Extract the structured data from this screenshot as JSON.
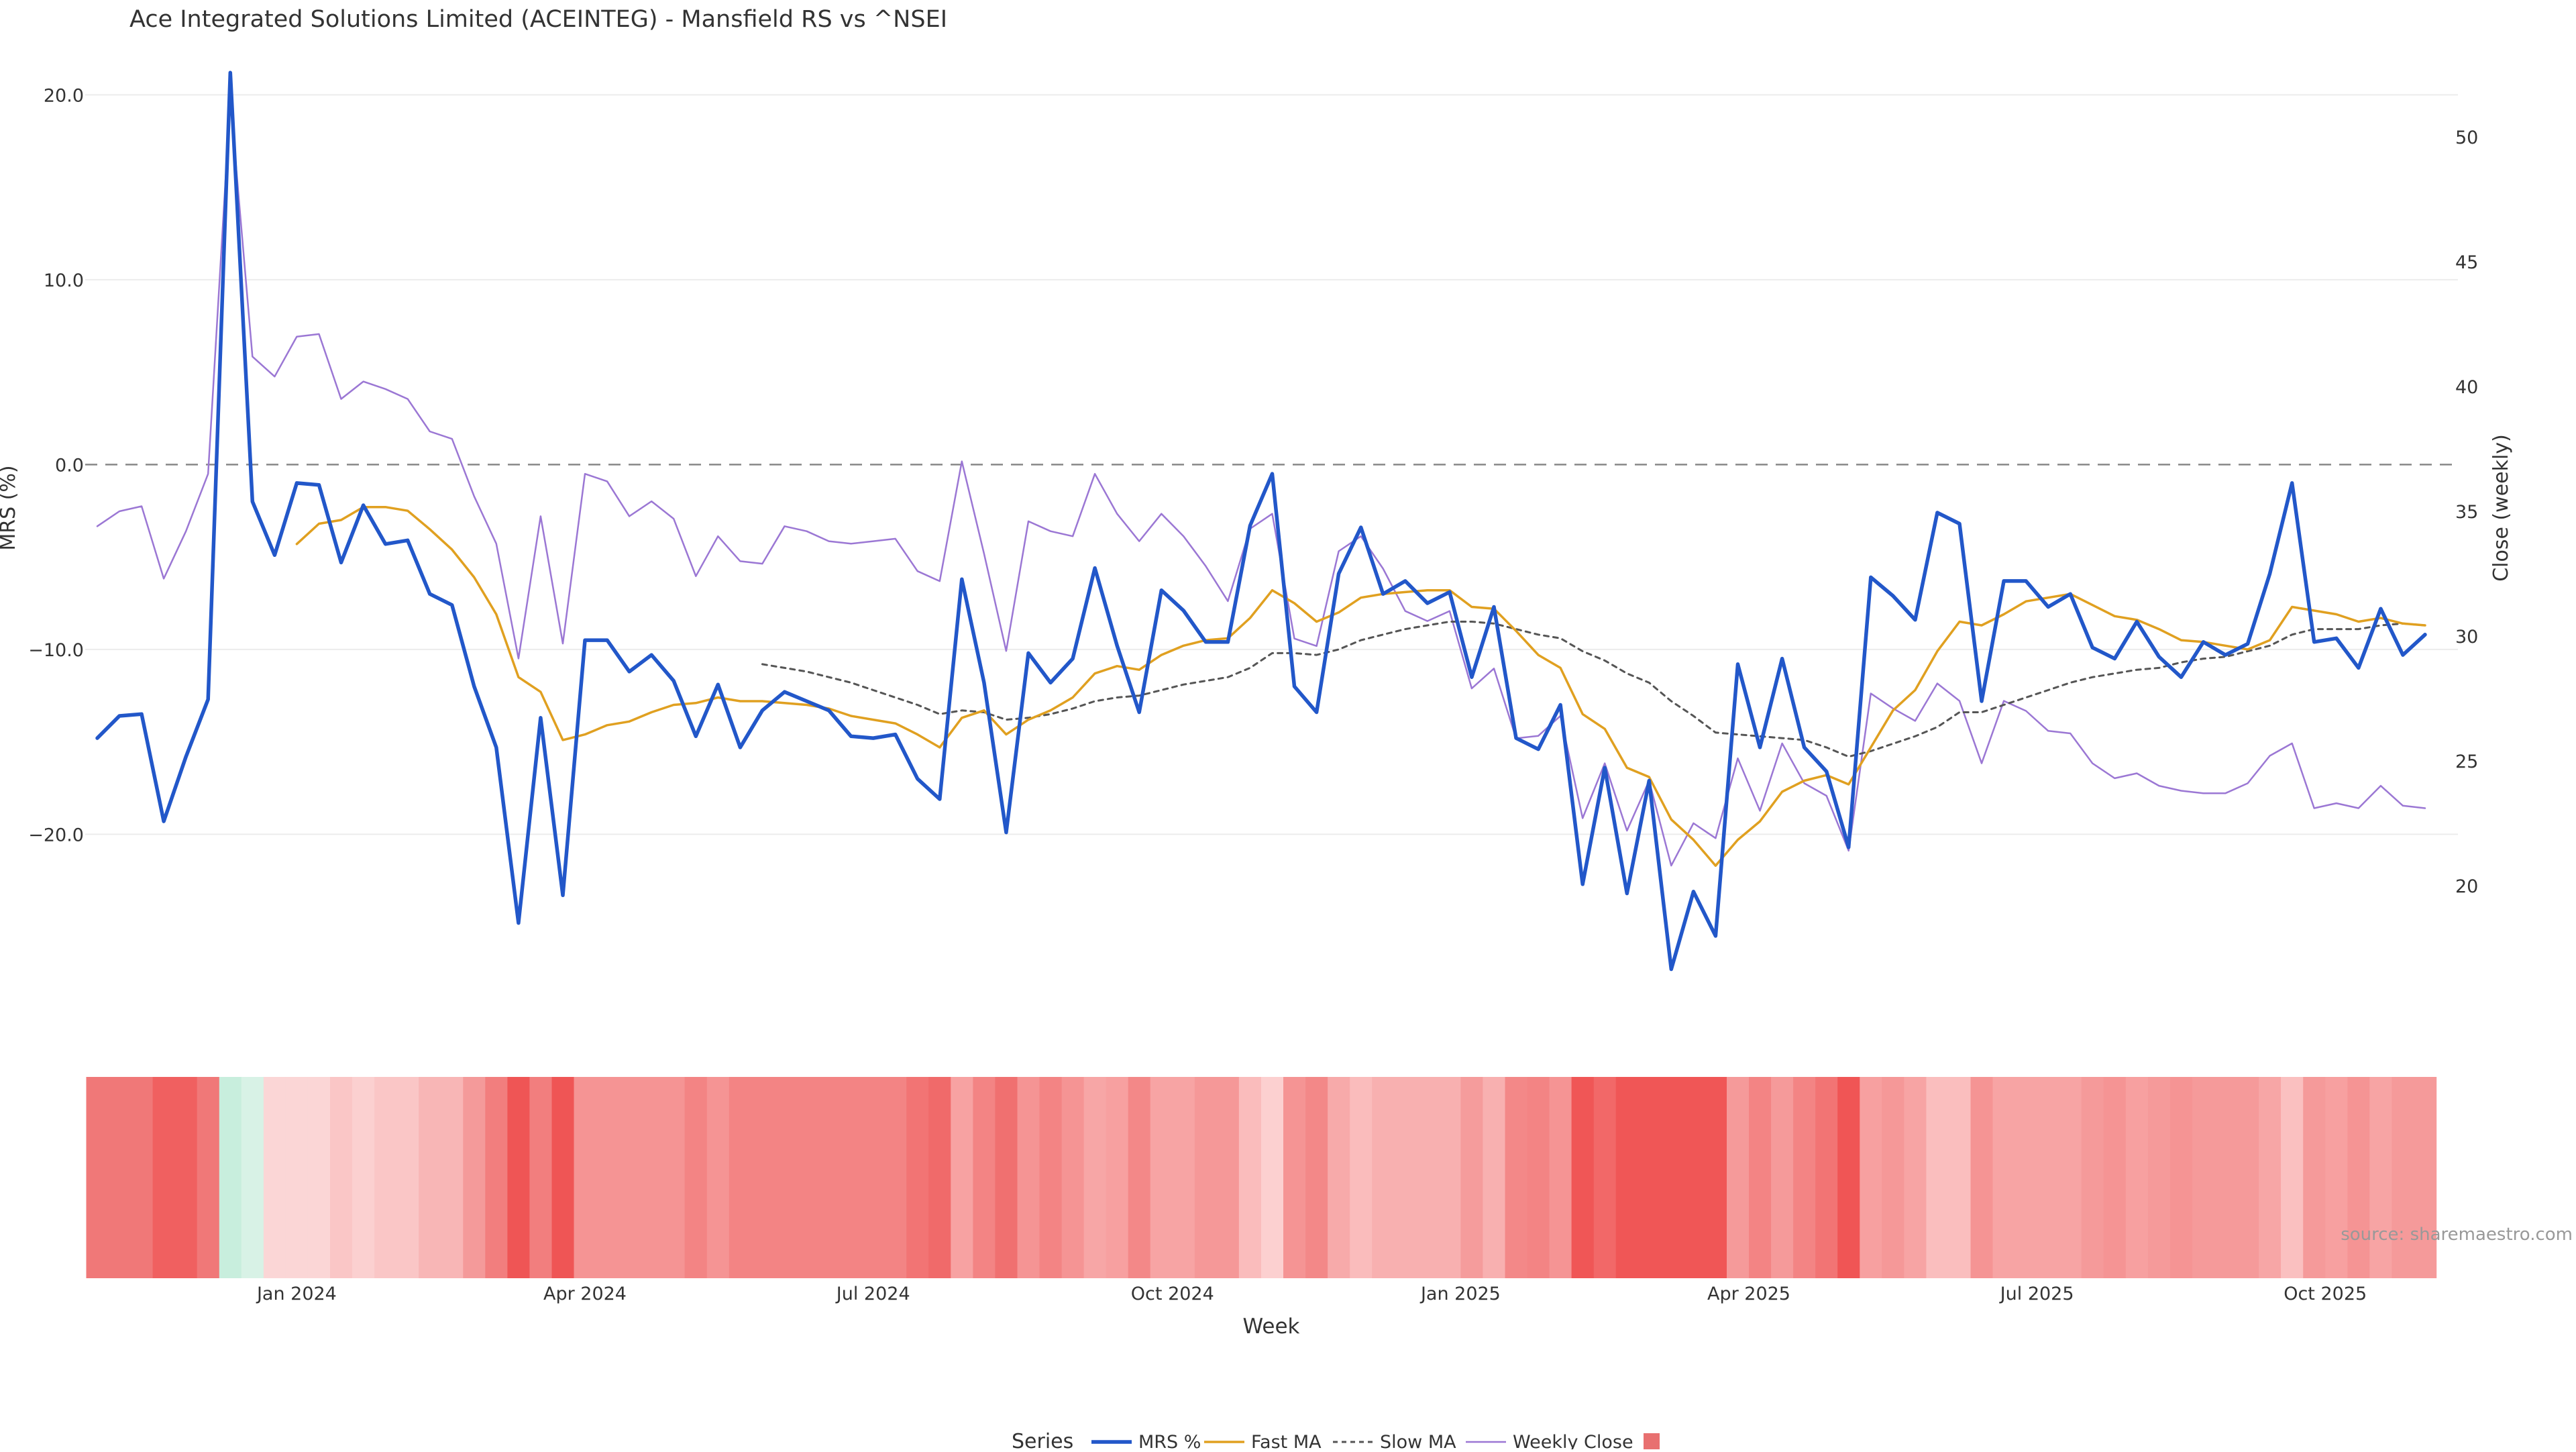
{
  "chart_data": {
    "type": "line",
    "title": "Ace Integrated Solutions Limited (ACEINTEG) - Mansfield RS vs ^NSEI",
    "xlabel": "Week",
    "ylabel": "MRS (%)",
    "y2label": "Close (weekly)",
    "source": "source: sharemaestro.com",
    "legend_title": "Series",
    "legend_position": "bottom-center",
    "grid": true,
    "ylim": [
      -27.5,
      21.5
    ],
    "y2lim": [
      16.5,
      52.8
    ],
    "yticks": [
      20,
      10,
      0,
      -10,
      -20
    ],
    "ytick_labels": [
      "20.0",
      "10.0",
      "0.0",
      "−10.0",
      "−20.0"
    ],
    "y2ticks": [
      50,
      45,
      40,
      35,
      30,
      25,
      20
    ],
    "y2tick_labels": [
      "50",
      "45",
      "40",
      "35",
      "30",
      "25",
      "20"
    ],
    "x_ticks": [
      {
        "label": "Jan 2024",
        "week": 9
      },
      {
        "label": "Apr 2024",
        "week": 22
      },
      {
        "label": "Jul 2024",
        "week": 35
      },
      {
        "label": "Oct 2024",
        "week": 48.5
      },
      {
        "label": "Jan 2025",
        "week": 61.5
      },
      {
        "label": "Apr 2025",
        "week": 74.5
      },
      {
        "label": "Jul 2025",
        "week": 87.5
      },
      {
        "label": "Oct 2025",
        "week": 100.5
      }
    ],
    "n_weeks": 107,
    "series": [
      {
        "name": "MRS %",
        "axis": "left",
        "color": "#2257c9",
        "style": "solid",
        "values": [
          -14.8,
          -13.6,
          -13.5,
          -19.3,
          -15.8,
          -12.7,
          21.2,
          -2.0,
          -4.9,
          -1.0,
          -1.1,
          -5.3,
          -2.2,
          -4.3,
          -4.1,
          -7.0,
          -7.6,
          -12.0,
          -15.3,
          -24.8,
          -13.7,
          -23.3,
          -9.5,
          -9.5,
          -11.2,
          -10.3,
          -11.7,
          -14.7,
          -11.9,
          -15.3,
          -13.3,
          -12.3,
          -12.8,
          -13.3,
          -14.7,
          -14.8,
          -14.6,
          -17.0,
          -18.1,
          -6.2,
          -11.8,
          -19.9,
          -10.2,
          -11.8,
          -10.5,
          -5.6,
          -9.8,
          -13.4,
          -6.8,
          -7.9,
          -9.6,
          -9.6,
          -3.3,
          -0.5,
          -12.0,
          -13.4,
          -5.9,
          -3.4,
          -7.0,
          -6.3,
          -7.5,
          -6.9,
          -11.5,
          -7.7,
          -14.8,
          -15.4,
          -13.0,
          -22.7,
          -16.4,
          -23.2,
          -17.1,
          -27.3,
          -23.1,
          -25.5,
          -10.8,
          -15.3,
          -10.5,
          -15.3,
          -16.6,
          -20.7,
          -6.1,
          -7.1,
          -8.4,
          -2.6,
          -3.2,
          -12.8,
          -6.3,
          -6.3,
          -7.7,
          -7.0,
          -9.9,
          -10.5,
          -8.5,
          -10.4,
          -11.5,
          -9.6,
          -10.3,
          -9.7,
          -5.9,
          -1.0,
          -9.6,
          -9.4,
          -11.0,
          -7.8,
          -10.3,
          -9.2
        ]
      },
      {
        "name": "Fast MA",
        "axis": "left",
        "color": "#e0a020",
        "style": "solid",
        "values": [
          null,
          null,
          null,
          null,
          null,
          null,
          null,
          null,
          null,
          -4.3,
          -3.2,
          -3.0,
          -2.3,
          -2.3,
          -2.5,
          -3.5,
          -4.6,
          -6.1,
          -8.1,
          -11.5,
          -12.3,
          -14.9,
          -14.6,
          -14.1,
          -13.9,
          -13.4,
          -13.0,
          -12.9,
          -12.6,
          -12.8,
          -12.8,
          -12.9,
          -13.0,
          -13.2,
          -13.6,
          -13.8,
          -14.0,
          -14.6,
          -15.3,
          -13.7,
          -13.3,
          -14.6,
          -13.8,
          -13.3,
          -12.6,
          -11.3,
          -10.9,
          -11.1,
          -10.3,
          -9.8,
          -9.5,
          -9.4,
          -8.3,
          -6.8,
          -7.5,
          -8.5,
          -8.0,
          -7.2,
          -7.0,
          -6.9,
          -6.8,
          -6.8,
          -7.7,
          -7.8,
          -9.0,
          -10.3,
          -11.0,
          -13.5,
          -14.3,
          -16.4,
          -16.9,
          -19.2,
          -20.3,
          -21.7,
          -20.3,
          -19.3,
          -17.7,
          -17.1,
          -16.8,
          -17.3,
          -15.3,
          -13.3,
          -12.2,
          -10.1,
          -8.5,
          -8.7,
          -8.1,
          -7.4,
          -7.2,
          -7.0,
          -7.6,
          -8.2,
          -8.4,
          -8.9,
          -9.5,
          -9.6,
          -9.8,
          -10.0,
          -9.5,
          -7.7,
          -7.9,
          -8.1,
          -8.5,
          -8.3,
          -8.6,
          -8.7
        ]
      },
      {
        "name": "Slow MA",
        "axis": "left",
        "color": "#555555",
        "style": "dotted",
        "values": [
          null,
          null,
          null,
          null,
          null,
          null,
          null,
          null,
          null,
          null,
          null,
          null,
          null,
          null,
          null,
          null,
          null,
          null,
          null,
          null,
          null,
          null,
          null,
          null,
          null,
          null,
          null,
          null,
          null,
          null,
          -10.8,
          -11.0,
          -11.2,
          -11.5,
          -11.8,
          -12.2,
          -12.6,
          -13.0,
          -13.5,
          -13.3,
          -13.4,
          -13.8,
          -13.7,
          -13.5,
          -13.2,
          -12.8,
          -12.6,
          -12.5,
          -12.2,
          -11.9,
          -11.7,
          -11.5,
          -11.0,
          -10.2,
          -10.2,
          -10.3,
          -10.0,
          -9.5,
          -9.2,
          -8.9,
          -8.7,
          -8.5,
          -8.5,
          -8.6,
          -8.9,
          -9.2,
          -9.4,
          -10.1,
          -10.6,
          -11.3,
          -11.8,
          -12.8,
          -13.6,
          -14.5,
          -14.6,
          -14.7,
          -14.8,
          -14.9,
          -15.3,
          -15.8,
          -15.5,
          -15.1,
          -14.7,
          -14.2,
          -13.4,
          -13.4,
          -13.0,
          -12.6,
          -12.2,
          -11.8,
          -11.5,
          -11.3,
          -11.1,
          -11.0,
          -10.7,
          -10.5,
          -10.4,
          -10.1,
          -9.8,
          -9.2,
          -8.9,
          -8.9,
          -8.9,
          -8.7,
          -8.6,
          -8.7
        ]
      },
      {
        "name": "Weekly Close",
        "axis": "right",
        "color": "#9b77d4",
        "style": "solid",
        "values": [
          34.4,
          35.0,
          35.2,
          32.3,
          34.2,
          36.5,
          51.5,
          41.2,
          40.4,
          42.0,
          42.1,
          39.5,
          40.2,
          39.9,
          39.5,
          38.2,
          37.9,
          35.6,
          33.7,
          29.1,
          34.8,
          29.7,
          36.5,
          36.2,
          34.8,
          35.4,
          34.7,
          32.4,
          34.0,
          33.0,
          32.9,
          34.4,
          34.2,
          33.8,
          33.7,
          33.8,
          33.9,
          32.6,
          32.2,
          37.0,
          33.3,
          29.4,
          34.6,
          34.2,
          34.0,
          36.5,
          34.9,
          33.8,
          34.9,
          34.0,
          32.8,
          31.4,
          34.3,
          34.9,
          29.9,
          29.6,
          33.4,
          34.0,
          32.7,
          31.0,
          30.6,
          31.0,
          27.9,
          28.7,
          25.9,
          26.0,
          26.8,
          22.7,
          24.9,
          22.2,
          24.2,
          20.8,
          22.5,
          21.9,
          25.1,
          23.0,
          25.7,
          24.1,
          23.6,
          21.4,
          27.7,
          27.1,
          26.6,
          28.1,
          27.4,
          24.9,
          27.4,
          27.0,
          26.2,
          26.1,
          24.9,
          24.3,
          24.5,
          24.0,
          23.8,
          23.7,
          23.7,
          24.1,
          25.2,
          25.7,
          23.1,
          23.3,
          23.1,
          24.0,
          23.2,
          23.1
        ]
      },
      {
        "name": "",
        "type": "heatmap",
        "color": "#e87070",
        "values": [
          -14.8,
          -13.6,
          -13.5,
          -19.3,
          -15.8,
          -12.7,
          21.2,
          -2.0,
          -4.9,
          -1.0,
          -1.1,
          -5.3,
          -2.2,
          -4.3,
          -4.1,
          -7.0,
          -7.6,
          -12.0,
          -15.3,
          -24.8,
          -13.7,
          -23.3,
          -9.5,
          -9.5,
          -11.2,
          -10.3,
          -11.7,
          -14.7,
          -11.9,
          -15.3,
          -13.3,
          -12.3,
          -12.8,
          -13.3,
          -14.7,
          -14.8,
          -14.6,
          -17.0,
          -18.1,
          -6.2,
          -11.8,
          -19.9,
          -10.2,
          -11.8,
          -10.5,
          -5.6,
          -9.8,
          -13.4,
          -6.8,
          -7.9,
          -9.6,
          -9.6,
          -3.3,
          -0.5,
          -12.0,
          -13.4,
          -5.9,
          -3.4,
          -7.0,
          -6.3,
          -7.5,
          -6.9,
          -11.5,
          -7.7,
          -14.8,
          -15.4,
          -13.0,
          -22.7,
          -16.4,
          -23.2,
          -17.1,
          -27.3,
          -23.1,
          -25.5,
          -10.8,
          -15.3,
          -10.5,
          -15.3,
          -16.6,
          -20.7,
          -6.1,
          -7.1,
          -8.4,
          -2.6,
          -3.2,
          -12.8,
          -6.3,
          -6.3,
          -7.7,
          -7.0,
          -9.9,
          -10.5,
          -8.5,
          -10.4,
          -11.5,
          -9.6,
          -10.3,
          -9.7,
          -5.9,
          -1.0,
          -9.6,
          -9.4,
          -11.0,
          -7.8,
          -10.3,
          -9.2
        ]
      }
    ],
    "heatmap_colors": [
      "#f07878",
      "#f07878",
      "#f07878",
      "#f06060",
      "#f06060",
      "#f07878",
      "#c8eedd",
      "#d8f2e6",
      "#fbd6d6",
      "#fbd6d6",
      "#fbd6d6",
      "#fac6c6",
      "#fbd0d0",
      "#fac6c6",
      "#fac6c6",
      "#f8b6b6",
      "#f8b6b6",
      "#f49a9a",
      "#f27e7e",
      "#ef5555",
      "#f27e7e",
      "#ef5555",
      "#f59494",
      "#f59494",
      "#f59494",
      "#f59494",
      "#f59494",
      "#f38484",
      "#f59494",
      "#f38484",
      "#f38484",
      "#f38484",
      "#f38484",
      "#f38484",
      "#f38484",
      "#f38484",
      "#f38484",
      "#f27474",
      "#f06a6a",
      "#f7a2a2",
      "#f38484",
      "#f07070",
      "#f59494",
      "#f38484",
      "#f59494",
      "#f7a6a6",
      "#f7a0a0",
      "#f38888",
      "#f7a4a4",
      "#f7a4a4",
      "#f59898",
      "#f59898",
      "#fabcbc",
      "#fcd0d0",
      "#f59494",
      "#f38888",
      "#f7aaaa",
      "#fabcbc",
      "#f8b0b0",
      "#f8b0b0",
      "#f8b0b0",
      "#f8b0b0",
      "#f59c9c",
      "#f8b0b0",
      "#f38888",
      "#f38484",
      "#f59494",
      "#f05656",
      "#f26868",
      "#f05656",
      "#f05656",
      "#f05656",
      "#f05656",
      "#f05656",
      "#f59a9a",
      "#f38484",
      "#f59a9a",
      "#f38484",
      "#f27474",
      "#f05555",
      "#f7a0a0",
      "#f59898",
      "#f7a4a4",
      "#fabebe",
      "#fabebe",
      "#f59494",
      "#f7a4a4",
      "#f7a4a4",
      "#f7a4a4",
      "#f7a4a4",
      "#f59a9a",
      "#f59494",
      "#f7a0a0",
      "#f59a9a",
      "#f59494",
      "#f59a9a",
      "#f59a9a",
      "#f59a9a",
      "#f7a6a6",
      "#fac0c0",
      "#f59a9a",
      "#f7a0a0",
      "#f59494",
      "#f7a4a4",
      "#f59a9a",
      "#f59a9a"
    ]
  }
}
